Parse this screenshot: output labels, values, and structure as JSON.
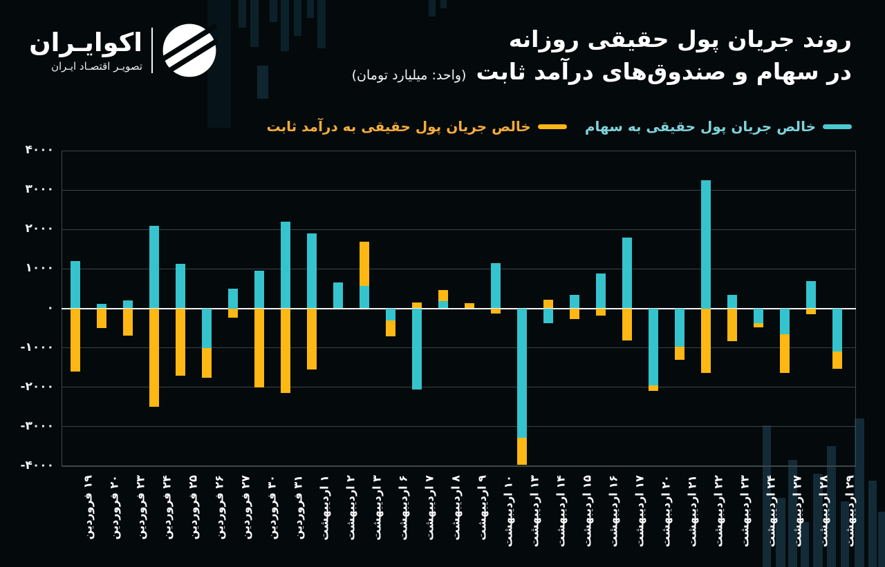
{
  "brand": {
    "name": "اکوایـران",
    "tagline": "تصویـر اقتصـاد ایـران"
  },
  "title": {
    "line1": "روند جریان پول حقیقی روزانه",
    "line2": "در سهام و صندوق‌های درآمد ثابت",
    "unit": "(واحد: میلیارد تومان)"
  },
  "legend": [
    {
      "label": "خالص جریان پول حقیقی به سهام",
      "marker_color": "#49C9D3",
      "text_color": "#7FD2DA"
    },
    {
      "label": "خالص جریان پول حقیقی به درآمد ثابت",
      "marker_color": "#FDB515",
      "text_color": "#F3AC3D"
    }
  ],
  "chart_data": {
    "type": "bar",
    "stacked": true,
    "title": "روند جریان پول حقیقی روزانه در سهام و صندوق‌های درآمد ثابت",
    "unit": "میلیارد تومان",
    "xlabel": "",
    "ylabel": "",
    "ylim": [
      -4000,
      4000
    ],
    "grid": true,
    "legend_position": "top",
    "zero_line_color": "#F2F5F5",
    "categories": [
      "۱۹ فروردین",
      "۲۰ فروردین",
      "۲۳ فروردین",
      "۲۴ فروردین",
      "۲۵ فروردین",
      "۲۶ فروردین",
      "۲۷ فروردین",
      "۳۰ فروردین",
      "۳۱ فروردین",
      "۱ اردیبهشت",
      "۲ اردیبهشت",
      "۳ اردیبهشت",
      "۶ اردیبهشت",
      "۷ اردیبهشت",
      "۸ اردیبهشت",
      "۹ اردیبهشت",
      "۱۰ اردیبهشت",
      "۱۳ اردیبهشت",
      "۱۴ اردیبهشت",
      "۱۵ اردیبهشت",
      "۱۶ اردیبهشت",
      "۱۷ اردیبهشت",
      "۲۰ اردیبهشت",
      "۲۱ اردیبهشت",
      "۲۲ اردیبهشت",
      "۲۳ اردیبهشت",
      "۲۴ اردیبهشت",
      "۲۷ اردیبهشت",
      "۲۸ اردیبهشت",
      "۲۹ اردیبهشت"
    ],
    "series": [
      {
        "name": "خالص جریان پول حقیقی به سهام",
        "color": "#35C4CE",
        "values": [
          1200,
          120,
          200,
          2100,
          1130,
          -1000,
          500,
          950,
          2200,
          1900,
          650,
          570,
          -300,
          -2050,
          190,
          0,
          1150,
          -3280,
          -380,
          340,
          880,
          1790,
          -1950,
          -980,
          3250,
          350,
          -380,
          -650,
          690,
          -1100
        ]
      },
      {
        "name": "خالص جریان پول حقیقی به درآمد ثابت",
        "color": "#FDB813",
        "values": [
          -1600,
          -500,
          -700,
          -2500,
          -1700,
          -760,
          -230,
          -2000,
          -2150,
          -1550,
          0,
          1120,
          -410,
          150,
          280,
          140,
          -140,
          -690,
          220,
          -280,
          -180,
          -820,
          -150,
          -330,
          -1630,
          -840,
          -110,
          -980,
          -150,
          -430
        ]
      }
    ],
    "yticks": [
      {
        "value": 4000,
        "label": "۴۰۰۰"
      },
      {
        "value": 3000,
        "label": "۳۰۰۰"
      },
      {
        "value": 2000,
        "label": "۲۰۰۰"
      },
      {
        "value": 1000,
        "label": "۱۰۰۰"
      },
      {
        "value": 0,
        "label": "۰"
      },
      {
        "value": -1000,
        "label": "-۱۰۰۰"
      },
      {
        "value": -2000,
        "label": "-۲۰۰۰"
      },
      {
        "value": -3000,
        "label": "-۳۰۰۰"
      },
      {
        "value": -4000,
        "label": "-۴۰۰۰"
      }
    ]
  }
}
